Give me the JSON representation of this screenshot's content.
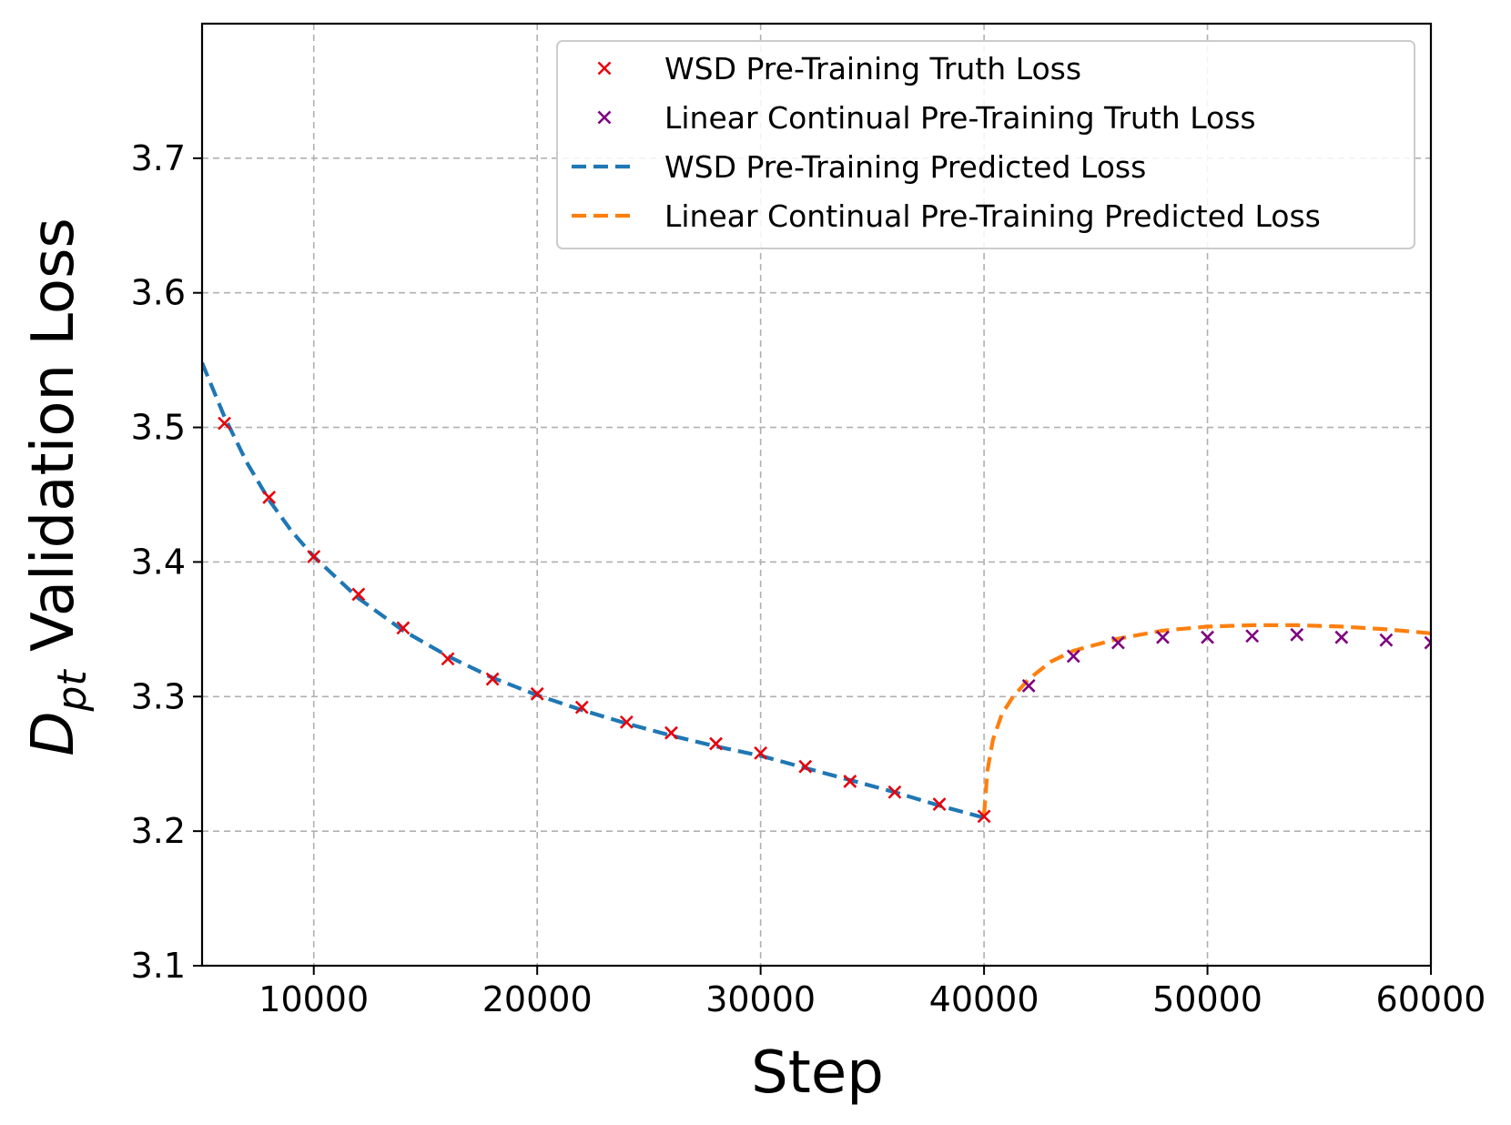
{
  "chart_data": {
    "type": "line",
    "xlabel": "Step",
    "ylabel_main": "D",
    "ylabel_sub": "pt",
    "ylabel_rest": " Validation Loss",
    "xlim": [
      5000,
      60000
    ],
    "ylim": [
      3.1,
      3.8
    ],
    "xticks": [
      10000,
      20000,
      30000,
      40000,
      50000,
      60000
    ],
    "xtick_labels": [
      "10000",
      "20000",
      "30000",
      "40000",
      "50000",
      "60000"
    ],
    "yticks": [
      3.1,
      3.2,
      3.3,
      3.4,
      3.5,
      3.6,
      3.7
    ],
    "ytick_labels": [
      "3.1",
      "3.2",
      "3.3",
      "3.4",
      "3.5",
      "3.6",
      "3.7"
    ],
    "grid": true,
    "legend_position": "top-right",
    "series": [
      {
        "name": "WSD Pre-Training Truth Loss",
        "kind": "scatter",
        "marker": "x",
        "color": "#e8000b",
        "x": [
          6000,
          8000,
          10000,
          12000,
          14000,
          16000,
          18000,
          20000,
          22000,
          24000,
          26000,
          28000,
          30000,
          32000,
          34000,
          36000,
          38000,
          40000
        ],
        "y": [
          3.503,
          3.448,
          3.404,
          3.376,
          3.351,
          3.328,
          3.313,
          3.302,
          3.292,
          3.281,
          3.273,
          3.265,
          3.258,
          3.248,
          3.237,
          3.229,
          3.22,
          3.211
        ]
      },
      {
        "name": "Linear Continual Pre-Training Truth Loss",
        "kind": "scatter",
        "marker": "x",
        "color": "#7f007f",
        "x": [
          42000,
          44000,
          46000,
          48000,
          50000,
          52000,
          54000,
          56000,
          58000,
          60000
        ],
        "y": [
          3.308,
          3.33,
          3.34,
          3.344,
          3.344,
          3.345,
          3.346,
          3.344,
          3.342,
          3.34
        ]
      },
      {
        "name": "WSD Pre-Training Predicted Loss",
        "kind": "line",
        "dash": true,
        "color": "#1f77b4",
        "x": [
          5000,
          6000,
          7000,
          8000,
          9000,
          10000,
          12000,
          14000,
          16000,
          18000,
          20000,
          22000,
          24000,
          26000,
          28000,
          30000,
          32000,
          34000,
          36000,
          38000,
          40000
        ],
        "y": [
          3.548,
          3.508,
          3.474,
          3.446,
          3.423,
          3.404,
          3.373,
          3.349,
          3.33,
          3.314,
          3.301,
          3.29,
          3.28,
          3.271,
          3.263,
          3.256,
          3.247,
          3.238,
          3.229,
          3.219,
          3.21
        ]
      },
      {
        "name": "Linear Continual Pre-Training Predicted Loss",
        "kind": "line",
        "dash": true,
        "color": "#ff7f0e",
        "x": [
          40000,
          40150,
          40400,
          40800,
          41300,
          42000,
          43000,
          44000,
          46000,
          48000,
          50000,
          52000,
          54000,
          56000,
          58000,
          60000
        ],
        "y": [
          3.212,
          3.245,
          3.268,
          3.287,
          3.3,
          3.313,
          3.326,
          3.334,
          3.343,
          3.349,
          3.352,
          3.353,
          3.353,
          3.352,
          3.35,
          3.347
        ]
      }
    ]
  }
}
